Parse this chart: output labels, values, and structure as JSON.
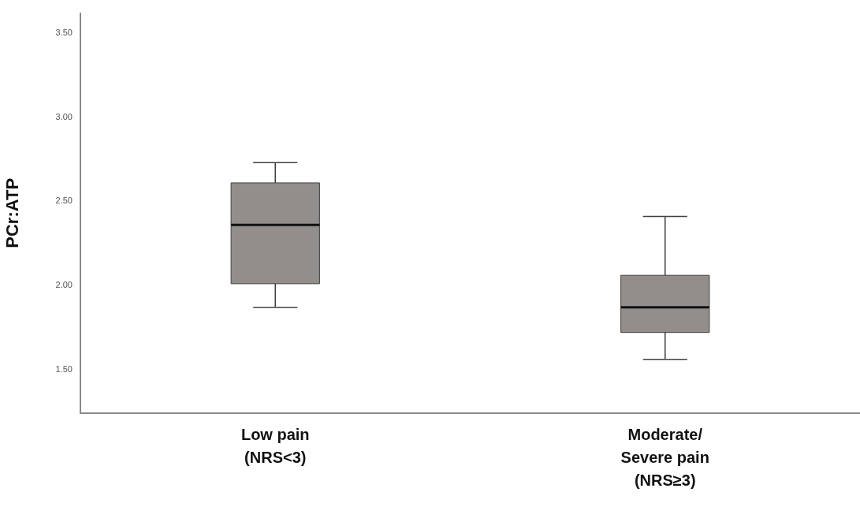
{
  "chart_data": {
    "type": "box",
    "ylabel": "PCr:ATP",
    "categories": [
      "Low pain\n(NRS<3)",
      "Moderate/\nSevere pain\n(NRS≥3)"
    ],
    "color": "#918e8c",
    "boxes": [
      {
        "low": 1.87,
        "q1": 2.01,
        "median": 2.36,
        "q3": 2.61,
        "high": 2.73
      },
      {
        "low": 1.56,
        "q1": 1.72,
        "median": 1.87,
        "q3": 2.06,
        "high": 2.41
      }
    ],
    "ylim": [
      1.24,
      3.62
    ],
    "yticks": [
      {
        "value": 1.5,
        "label": "1.50"
      },
      {
        "value": 2,
        "label": "2.00"
      },
      {
        "value": 2.5,
        "label": "2.50"
      },
      {
        "value": 3,
        "label": "3.00"
      },
      {
        "value": 3.5,
        "label": "3.50"
      }
    ]
  }
}
